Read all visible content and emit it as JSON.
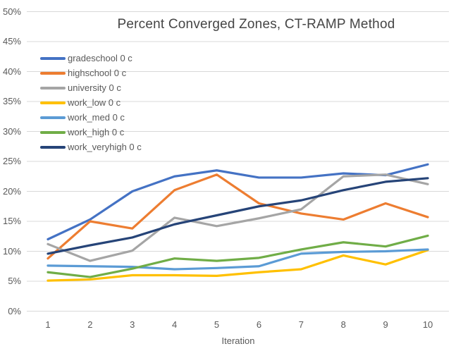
{
  "chart_data": {
    "type": "line",
    "title": "Percent Converged Zones, CT-RAMP Method",
    "xlabel": "Iteration",
    "ylabel": "",
    "x": [
      1,
      2,
      3,
      4,
      5,
      6,
      7,
      8,
      9,
      10
    ],
    "ylim": [
      0,
      50
    ],
    "ytick_step": 5,
    "ytick_labels": [
      "0%",
      "5%",
      "10%",
      "15%",
      "20%",
      "25%",
      "30%",
      "35%",
      "40%",
      "45%",
      "50%"
    ],
    "grid": true,
    "legend_position": "upper-left-inside",
    "series": [
      {
        "name": "gradeschool 0 c",
        "color": "#4472C4",
        "values": [
          12.0,
          15.3,
          20.0,
          22.5,
          23.5,
          22.3,
          22.3,
          23.0,
          22.7,
          24.5
        ]
      },
      {
        "name": "highschool 0 c",
        "color": "#ED7D31",
        "values": [
          8.8,
          15.0,
          13.8,
          20.2,
          22.8,
          18.0,
          16.3,
          15.3,
          18.0,
          15.7
        ]
      },
      {
        "name": "university 0 c",
        "color": "#A5A5A5",
        "values": [
          11.2,
          8.4,
          10.1,
          15.6,
          14.2,
          15.5,
          17.0,
          22.5,
          22.8,
          21.2
        ]
      },
      {
        "name": "work_low 0 c",
        "color": "#FFC000",
        "values": [
          5.1,
          5.3,
          6.0,
          6.0,
          5.9,
          6.5,
          7.0,
          9.3,
          7.8,
          10.2
        ]
      },
      {
        "name": "work_med 0 c",
        "color": "#5B9BD5",
        "values": [
          7.6,
          7.5,
          7.4,
          7.0,
          7.2,
          7.5,
          9.6,
          9.9,
          10.0,
          10.3
        ]
      },
      {
        "name": "work_high 0 c",
        "color": "#70AD47",
        "values": [
          6.5,
          5.7,
          7.1,
          8.8,
          8.4,
          8.9,
          10.3,
          11.5,
          10.8,
          12.6
        ]
      },
      {
        "name": "work_veryhigh 0 c",
        "color": "#264478",
        "values": [
          9.6,
          11.0,
          12.3,
          14.5,
          16.0,
          17.5,
          18.5,
          20.2,
          21.6,
          22.2
        ]
      }
    ],
    "style": {
      "gridline_color": "#D9D9D9",
      "title_color": "#454545",
      "axis_text_color": "#595959",
      "background": "#FFFFFF"
    }
  }
}
